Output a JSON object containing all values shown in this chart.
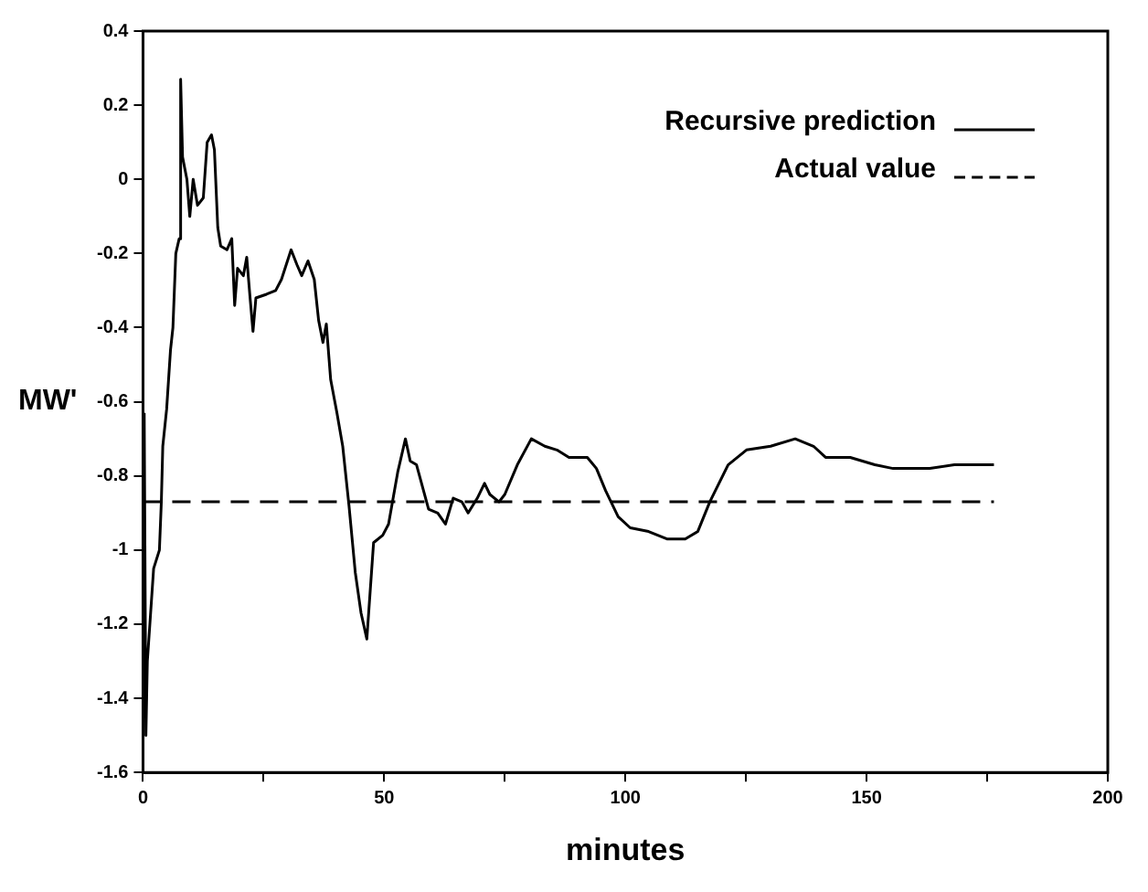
{
  "chart_data": {
    "type": "line",
    "xlabel": "minutes",
    "ylabel": "MW'",
    "xlim": [
      0,
      200
    ],
    "xticks": [
      0,
      {
        "value": 25,
        "label": null
      },
      50,
      {
        "value": 75,
        "label": null
      },
      100,
      {
        "value": 125,
        "label": null
      },
      150,
      {
        "value": 175,
        "label": null
      },
      200
    ],
    "ylim": [
      -1.6,
      0.4
    ],
    "yticks": [
      -1.6,
      -1.4,
      -1.2,
      -1,
      -0.8,
      -0.6,
      -0.4,
      -0.2,
      0,
      0.2,
      0.4
    ],
    "grid": false,
    "legend": "top right",
    "marker": "none",
    "series": [
      {
        "name": "Recursive prediction",
        "color": "#000000",
        "line_style": "solid",
        "x": [
          0.25,
          0.6,
          0.9,
          2.2,
          3.4,
          3.8,
          4.1,
          4.9,
          5.7,
          6.2,
          6.8,
          7.5,
          7.8,
          8.2,
          9.1,
          9.7,
          10.4,
          11.3,
          12.5,
          13.3,
          14.2,
          14.8,
          15.5,
          16.1,
          17.4,
          18.4,
          19.0,
          19.6,
          20.8,
          21.5,
          22.2,
          22.8,
          23.4,
          25.6,
          27.5,
          28.7,
          30.7,
          31.9,
          32.9,
          34.2,
          35.5,
          36.4,
          37.3,
          38.0,
          38.9,
          40.2,
          41.4,
          42.7,
          44.0,
          45.2,
          46.4,
          47.8,
          49.7,
          50.9,
          52.8,
          54.4,
          55.4,
          56.7,
          59.2,
          61.1,
          62.7,
          64.3,
          66.1,
          67.4,
          69.3,
          70.8,
          71.9,
          73.8,
          75.0,
          77.6,
          80.5,
          83.3,
          85.8,
          88.3,
          92.1,
          94.0,
          95.9,
          98.5,
          101.0,
          104.8,
          108.6,
          112.4,
          115.0,
          117.5,
          121.3,
          125.1,
          130.1,
          135.2,
          139.0,
          141.5,
          146.6,
          151.7,
          155.5,
          163.1,
          168.2,
          176.4
        ],
        "values": [
          -0.63,
          -1.5,
          -1.3,
          -1.05,
          -1.0,
          -0.87,
          -0.72,
          -0.62,
          -0.46,
          -0.4,
          -0.2,
          -0.16,
          0.27,
          0.06,
          0.0,
          -0.1,
          0.0,
          -0.07,
          -0.05,
          0.1,
          0.12,
          0.08,
          -0.13,
          -0.18,
          -0.19,
          -0.16,
          -0.34,
          -0.24,
          -0.26,
          -0.21,
          -0.32,
          -0.41,
          -0.32,
          -0.31,
          -0.3,
          -0.27,
          -0.19,
          -0.23,
          -0.26,
          -0.22,
          -0.27,
          -0.38,
          -0.44,
          -0.39,
          -0.54,
          -0.63,
          -0.72,
          -0.88,
          -1.06,
          -1.17,
          -1.24,
          -0.98,
          -0.96,
          -0.93,
          -0.79,
          -0.7,
          -0.76,
          -0.77,
          -0.89,
          -0.9,
          -0.93,
          -0.86,
          -0.87,
          -0.9,
          -0.86,
          -0.82,
          -0.85,
          -0.87,
          -0.85,
          -0.77,
          -0.7,
          -0.72,
          -0.73,
          -0.75,
          -0.75,
          -0.78,
          -0.84,
          -0.91,
          -0.94,
          -0.95,
          -0.97,
          -0.97,
          -0.95,
          -0.87,
          -0.77,
          -0.73,
          -0.72,
          -0.7,
          -0.72,
          -0.75,
          -0.75,
          -0.77,
          -0.78,
          -0.78,
          -0.77,
          -0.77
        ]
      },
      {
        "name": "Actual value",
        "color": "#000000",
        "line_style": "dashed",
        "x": [
          0,
          176.4
        ],
        "values": [
          -0.87,
          -0.87
        ]
      }
    ]
  }
}
